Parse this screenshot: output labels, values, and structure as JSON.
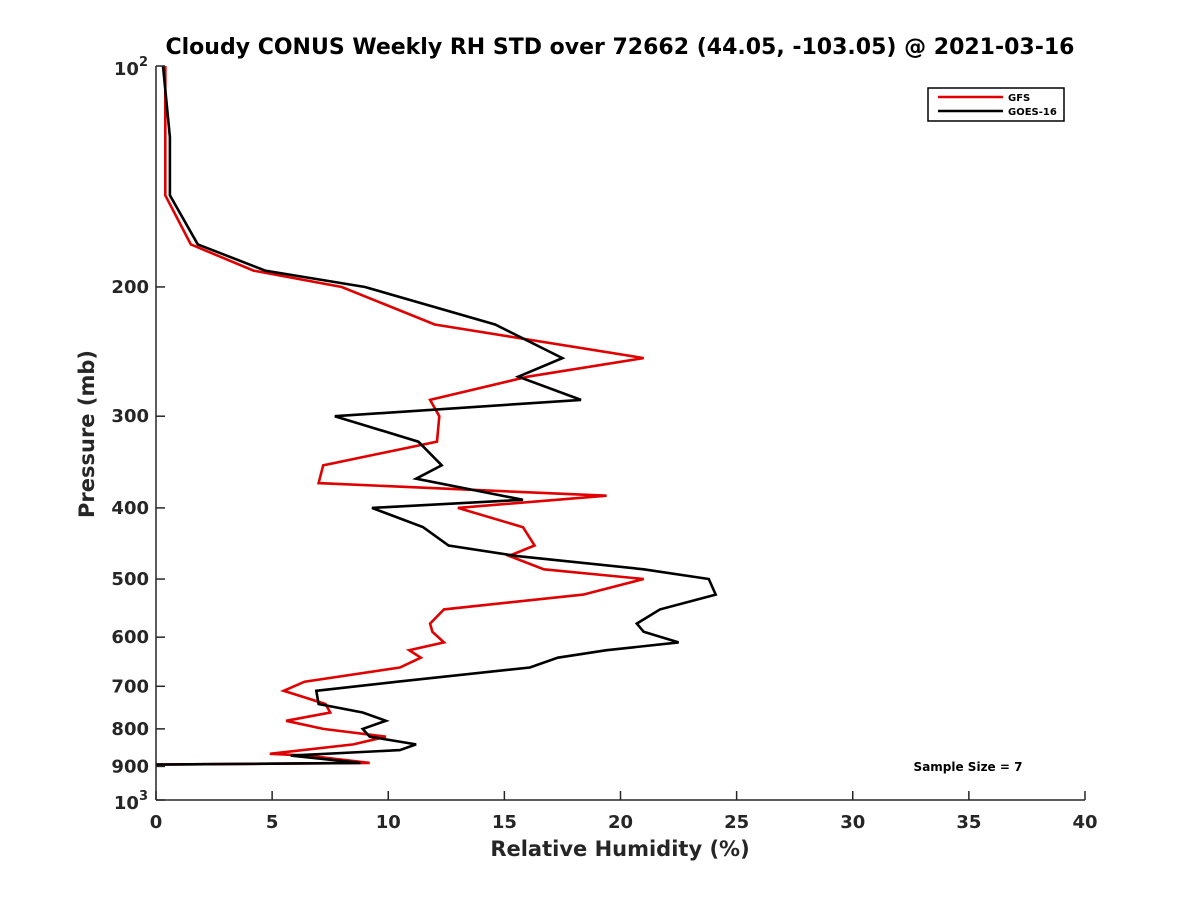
{
  "chart_data": {
    "type": "line",
    "title": "Cloudy CONUS Weekly RH STD over 72662 (44.05, -103.05) @ 2021-03-16",
    "xlabel": "Relative Humidity (%)",
    "ylabel": "Pressure (mb)",
    "xlim": [
      0,
      40
    ],
    "ylim": [
      100,
      1000
    ],
    "y_scale": "log",
    "y_reversed": true,
    "x_ticks": [
      "0",
      "5",
      "10",
      "15",
      "20",
      "25",
      "30",
      "35",
      "40"
    ],
    "y_ticks": [
      {
        "value": 100,
        "base": "10",
        "exp": "2"
      },
      {
        "value": 200,
        "label": "200"
      },
      {
        "value": 300,
        "label": "300"
      },
      {
        "value": 400,
        "label": "400"
      },
      {
        "value": 500,
        "label": "500"
      },
      {
        "value": 600,
        "label": "600"
      },
      {
        "value": 700,
        "label": "700"
      },
      {
        "value": 800,
        "label": "800"
      },
      {
        "value": 900,
        "label": "900"
      },
      {
        "value": 1000,
        "base": "10",
        "exp": "3"
      }
    ],
    "grid": false,
    "legend_position": "top-right",
    "annotation": "Sample Size = 7",
    "series": [
      {
        "name": "GFS",
        "color": "#e00000",
        "points": [
          [
            0.4,
            100
          ],
          [
            0.4,
            125
          ],
          [
            0.4,
            150
          ],
          [
            1.5,
            175
          ],
          [
            4.2,
            190
          ],
          [
            8,
            200
          ],
          [
            12,
            225
          ],
          [
            21,
            250
          ],
          [
            16,
            265
          ],
          [
            11.8,
            285
          ],
          [
            12.2,
            300
          ],
          [
            12.1,
            325
          ],
          [
            7.2,
            350
          ],
          [
            7,
            370
          ],
          [
            19.4,
            385
          ],
          [
            13,
            400
          ],
          [
            15.8,
            425
          ],
          [
            16.3,
            450
          ],
          [
            15.2,
            465
          ],
          [
            16.7,
            485
          ],
          [
            21,
            500
          ],
          [
            18.4,
            525
          ],
          [
            12.4,
            550
          ],
          [
            11.8,
            575
          ],
          [
            11.9,
            590
          ],
          [
            12.4,
            610
          ],
          [
            10.9,
            625
          ],
          [
            11.4,
            640
          ],
          [
            10.5,
            660
          ],
          [
            6.4,
            690
          ],
          [
            5.5,
            710
          ],
          [
            7.3,
            740
          ],
          [
            7.5,
            760
          ],
          [
            5.6,
            780
          ],
          [
            7.2,
            800
          ],
          [
            9.9,
            820
          ],
          [
            8.5,
            840
          ],
          [
            4.9,
            865
          ],
          [
            6.5,
            870
          ],
          [
            9.2,
            890
          ],
          [
            0,
            895
          ]
        ]
      },
      {
        "name": "GOES-16",
        "color": "#000000",
        "points": [
          [
            0.3,
            100
          ],
          [
            0.6,
            125
          ],
          [
            0.6,
            150
          ],
          [
            1.8,
            175
          ],
          [
            4.7,
            190
          ],
          [
            9,
            200
          ],
          [
            14.6,
            225
          ],
          [
            17.5,
            250
          ],
          [
            15.6,
            265
          ],
          [
            18.3,
            285
          ],
          [
            7.7,
            300
          ],
          [
            11.3,
            325
          ],
          [
            12.3,
            350
          ],
          [
            11.2,
            365
          ],
          [
            15.8,
            390
          ],
          [
            9.3,
            400
          ],
          [
            11.5,
            425
          ],
          [
            12.6,
            450
          ],
          [
            15.5,
            465
          ],
          [
            21,
            485
          ],
          [
            23.8,
            500
          ],
          [
            24.1,
            525
          ],
          [
            21.7,
            550
          ],
          [
            20.7,
            575
          ],
          [
            21,
            590
          ],
          [
            22.5,
            610
          ],
          [
            19.4,
            625
          ],
          [
            17.3,
            640
          ],
          [
            16.1,
            660
          ],
          [
            10.4,
            690
          ],
          [
            6.9,
            710
          ],
          [
            7,
            740
          ],
          [
            8.9,
            760
          ],
          [
            9.9,
            780
          ],
          [
            8.9,
            800
          ],
          [
            9.2,
            820
          ],
          [
            11.2,
            840
          ],
          [
            10.5,
            855
          ],
          [
            5.8,
            870
          ],
          [
            8.8,
            890
          ],
          [
            0,
            895
          ]
        ]
      }
    ]
  }
}
